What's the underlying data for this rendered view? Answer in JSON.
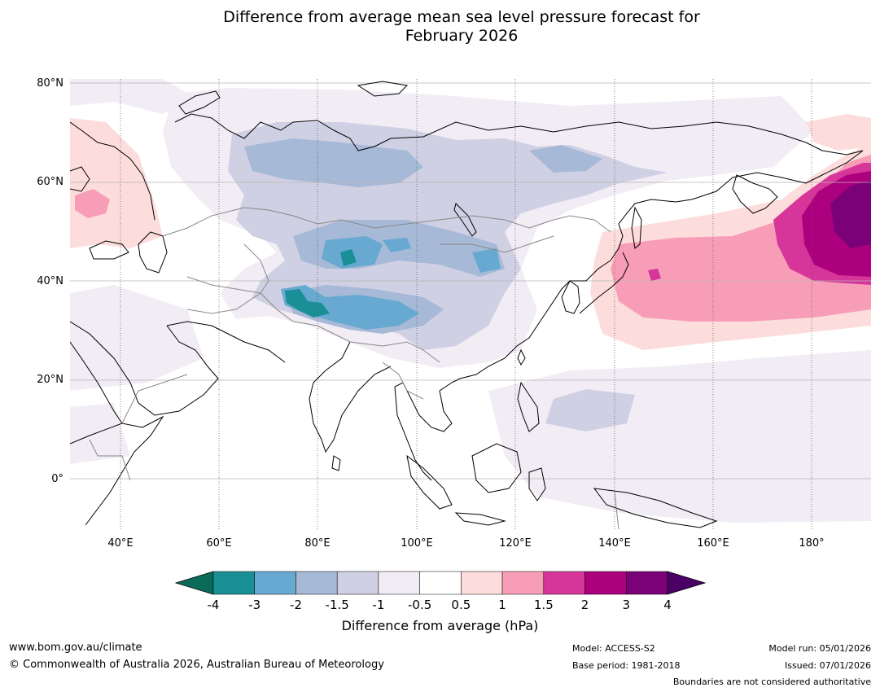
{
  "title": {
    "line1": "Difference from average mean sea level pressure forecast for",
    "line2": "February 2026"
  },
  "map": {
    "lat_labels": [
      "80°N",
      "60°N",
      "40°N",
      "20°N",
      "0°"
    ],
    "lon_labels": [
      "40°E",
      "60°E",
      "80°E",
      "100°E",
      "120°E",
      "140°E",
      "160°E",
      "180°"
    ]
  },
  "colorbar": {
    "ticks": [
      "-4",
      "-3",
      "-2",
      "-1.5",
      "-1",
      "-0.5",
      "0.5",
      "1",
      "1.5",
      "2",
      "3",
      "4"
    ],
    "label": "Difference from average (hPa)",
    "colors": {
      "below_min": "#0b6b5b",
      "bins": [
        "#1a8f95",
        "#67a9d0",
        "#a6b9d7",
        "#cfd0e3",
        "#f2ecf5",
        "#ffffff",
        "#fddcdc",
        "#f79db8",
        "#d6369a",
        "#ad007e",
        "#7a0177"
      ],
      "above_max": "#4b0066"
    }
  },
  "footer": {
    "website": "www.bom.gov.au/climate",
    "copyright": "© Commonwealth of Australia 2026, Australian Bureau of Meteorology",
    "model": "Model: ACCESS-S2",
    "base_period": "Base period: 1981-2018",
    "model_run": "Model run: 05/01/2026",
    "issued": "Issued: 07/01/2026",
    "disclaimer": "Boundaries are not considered authoritative"
  }
}
